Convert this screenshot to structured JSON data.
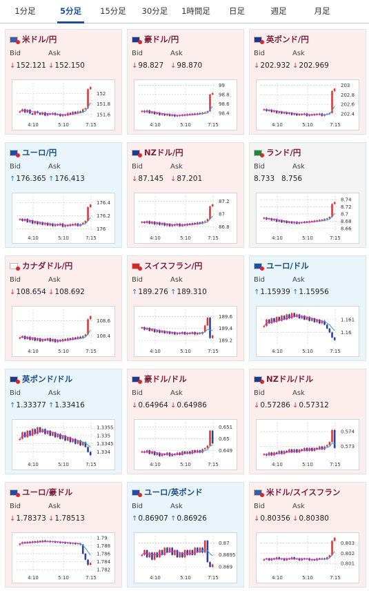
{
  "tabs": [
    {
      "label": "1分足",
      "active": false
    },
    {
      "label": "5分足",
      "active": true
    },
    {
      "label": "15分足",
      "active": false
    },
    {
      "label": "30分足",
      "active": false
    },
    {
      "label": "1時間足",
      "active": false
    },
    {
      "label": "日足",
      "active": false
    },
    {
      "label": "週足",
      "active": false
    },
    {
      "label": "月足",
      "active": false
    }
  ],
  "labels": {
    "bid": "Bid",
    "ask": "Ask"
  },
  "colors": {
    "tab_active": "#1b4f9b",
    "pair_pink_bg": "#fdeeee",
    "pair_blue_bg": "#eaf5fb",
    "down_arrow": "#d03030",
    "up_arrow": "#1679c9",
    "candle_up": "#d83a3a",
    "candle_down": "#2b3fa1",
    "moving_average": "#c640d2",
    "spike_line": "#2fa7e4"
  },
  "pairs": [
    {
      "name": "米ドル/円",
      "flag": "us-jp-flag-icon",
      "bg": "pink",
      "dir": "down",
      "bid": "152.121",
      "ask": "152.150",
      "chart_data": {
        "type": "candlestick",
        "x_ticks": [
          "4:10",
          "5:10",
          "7:15"
        ],
        "y_ticks": [
          "152",
          "151.8",
          "151.6"
        ],
        "ylim": [
          151.52,
          152.2
        ],
        "close": [
          151.66,
          151.7,
          151.64,
          151.69,
          151.62,
          151.6,
          151.66,
          151.63,
          151.6,
          151.64,
          151.58,
          151.62,
          151.6,
          151.63,
          151.59,
          151.61,
          151.57,
          151.6,
          151.58,
          151.63,
          151.6,
          151.65,
          151.62,
          151.66,
          151.64,
          151.7,
          151.72,
          152.08,
          152.12
        ]
      }
    },
    {
      "name": "豪ドル/円",
      "flag": "au-jp-flag-icon",
      "bg": "pink",
      "dir": "down",
      "bid": "98.827",
      "ask": "98.870",
      "chart_data": {
        "type": "candlestick",
        "x_ticks": [
          "4:10",
          "5:10",
          "7:15"
        ],
        "y_ticks": [
          "99",
          "98.8",
          "98.6",
          "98.4"
        ],
        "ylim": [
          98.28,
          99.05
        ],
        "close": [
          98.45,
          98.42,
          98.46,
          98.4,
          98.43,
          98.38,
          98.41,
          98.36,
          98.39,
          98.35,
          98.38,
          98.34,
          98.37,
          98.33,
          98.36,
          98.34,
          98.37,
          98.35,
          98.38,
          98.36,
          98.39,
          98.37,
          98.4,
          98.38,
          98.41,
          98.42,
          98.44,
          98.8,
          98.83
        ]
      }
    },
    {
      "name": "英ポンド/円",
      "flag": "gb-jp-flag-icon",
      "bg": "pink",
      "dir": "down",
      "bid": "202.932",
      "ask": "202.969",
      "chart_data": {
        "type": "candlestick",
        "x_ticks": [
          "4:10",
          "5:10",
          "7:15"
        ],
        "y_ticks": [
          "203",
          "202.8",
          "202.6",
          "202.4"
        ],
        "ylim": [
          202.3,
          203.05
        ],
        "close": [
          202.5,
          202.46,
          202.49,
          202.44,
          202.47,
          202.42,
          202.45,
          202.41,
          202.44,
          202.4,
          202.43,
          202.38,
          202.41,
          202.37,
          202.4,
          202.38,
          202.41,
          202.36,
          202.39,
          202.37,
          202.4,
          202.38,
          202.41,
          202.36,
          202.39,
          202.4,
          202.42,
          202.88,
          202.93
        ]
      }
    },
    {
      "name": "ユーロ/円",
      "flag": "eu-jp-flag-icon",
      "bg": "blue",
      "dir": "up",
      "bid": "176.365",
      "ask": "176.413",
      "chart_data": {
        "type": "candlestick",
        "x_ticks": [
          "4:10",
          "5:10",
          "7:15"
        ],
        "y_ticks": [
          "176.4",
          "176.2",
          "176"
        ],
        "ylim": [
          175.95,
          176.5
        ],
        "close": [
          176.15,
          176.12,
          176.15,
          176.1,
          176.13,
          176.08,
          176.11,
          176.07,
          176.1,
          176.06,
          176.09,
          176.05,
          176.08,
          176.04,
          176.07,
          176.05,
          176.08,
          176.03,
          176.06,
          176.04,
          176.07,
          176.05,
          176.08,
          176.04,
          176.07,
          176.09,
          176.12,
          176.33,
          176.37
        ]
      }
    },
    {
      "name": "NZドル/円",
      "flag": "nz-jp-flag-icon",
      "bg": "pink",
      "dir": "down",
      "bid": "87.145",
      "ask": "87.201",
      "chart_data": {
        "type": "candlestick",
        "x_ticks": [
          "4:10",
          "5:10",
          "7:15"
        ],
        "y_ticks": [
          "87.2",
          "87",
          "86.8"
        ],
        "ylim": [
          86.72,
          87.28
        ],
        "close": [
          86.88,
          86.86,
          86.89,
          86.85,
          86.88,
          86.84,
          86.87,
          86.83,
          86.86,
          86.82,
          86.85,
          86.81,
          86.84,
          86.82,
          86.85,
          86.81,
          86.84,
          86.82,
          86.85,
          86.83,
          86.86,
          86.84,
          86.87,
          86.85,
          86.88,
          86.89,
          86.92,
          87.12,
          87.15
        ]
      }
    },
    {
      "name": "ランド/円",
      "flag": "za-jp-flag-icon",
      "bg": "gray",
      "dir": "none",
      "bid": "8.733",
      "ask": "8.756",
      "chart_data": {
        "type": "candlestick",
        "x_ticks": [
          "4:10",
          "5:10",
          "7:15"
        ],
        "y_ticks": [
          "8.74",
          "8.72",
          "8.7",
          "8.68",
          "8.66"
        ],
        "ylim": [
          8.65,
          8.75
        ],
        "close": [
          8.69,
          8.685,
          8.688,
          8.682,
          8.686,
          8.679,
          8.683,
          8.677,
          8.681,
          8.675,
          8.679,
          8.674,
          8.678,
          8.673,
          8.677,
          8.675,
          8.679,
          8.676,
          8.68,
          8.678,
          8.682,
          8.68,
          8.684,
          8.682,
          8.686,
          8.688,
          8.692,
          8.728,
          8.733
        ]
      }
    },
    {
      "name": "カナダドル/円",
      "flag": "ca-jp-flag-icon",
      "bg": "pink",
      "dir": "down",
      "bid": "108.654",
      "ask": "108.692",
      "chart_data": {
        "type": "candlestick",
        "x_ticks": [
          "4:10",
          "5:10",
          "7:15"
        ],
        "y_ticks": [
          "108.6",
          "108.4"
        ],
        "ylim": [
          108.28,
          108.75
        ],
        "close": [
          108.38,
          108.4,
          108.36,
          108.39,
          108.35,
          108.38,
          108.34,
          108.37,
          108.33,
          108.36,
          108.34,
          108.37,
          108.33,
          108.36,
          108.32,
          108.35,
          108.33,
          108.36,
          108.34,
          108.37,
          108.35,
          108.38,
          108.36,
          108.39,
          108.37,
          108.4,
          108.42,
          108.62,
          108.66
        ]
      }
    },
    {
      "name": "スイスフラン/円",
      "flag": "ch-jp-flag-icon",
      "bg": "pink",
      "dir": "up",
      "bid": "189.276",
      "ask": "189.310",
      "chart_data": {
        "type": "candlestick",
        "x_ticks": [
          "4:10",
          "5:10",
          "7:15"
        ],
        "y_ticks": [
          "189.6",
          "189.4",
          "189.2"
        ],
        "ylim": [
          189.12,
          189.72
        ],
        "close": [
          189.42,
          189.38,
          189.41,
          189.36,
          189.39,
          189.34,
          189.37,
          189.33,
          189.36,
          189.32,
          189.35,
          189.31,
          189.34,
          189.3,
          189.33,
          189.31,
          189.34,
          189.3,
          189.33,
          189.31,
          189.34,
          189.3,
          189.33,
          189.31,
          189.34,
          189.45,
          189.58,
          189.24,
          189.28
        ]
      }
    },
    {
      "name": "ユーロ/ドル",
      "flag": "eu-us-flag-icon",
      "bg": "blue",
      "dir": "up",
      "bid": "1.15939",
      "ask": "1.15956",
      "chart_data": {
        "type": "candlestick",
        "x_ticks": [
          "4:10",
          "5:10",
          "7:15"
        ],
        "y_ticks": [
          "1.161",
          "1.16"
        ],
        "ylim": [
          1.159,
          1.1618
        ],
        "close": [
          1.1605,
          1.161,
          1.1607,
          1.1611,
          1.1608,
          1.1612,
          1.1609,
          1.1613,
          1.161,
          1.1614,
          1.1611,
          1.1615,
          1.1612,
          1.1614,
          1.1611,
          1.1613,
          1.161,
          1.1612,
          1.1609,
          1.1611,
          1.1608,
          1.161,
          1.1607,
          1.1609,
          1.1606,
          1.1603,
          1.16,
          1.1596,
          1.1594
        ]
      }
    },
    {
      "name": "英ポンド/ドル",
      "flag": "gb-us-flag-icon",
      "bg": "blue",
      "dir": "up",
      "bid": "1.33377",
      "ask": "1.33416",
      "chart_data": {
        "type": "candlestick",
        "x_ticks": [
          "4:10",
          "5:10",
          "7:15"
        ],
        "y_ticks": [
          "1.3355",
          "1.335",
          "1.3345",
          "1.334"
        ],
        "ylim": [
          1.3336,
          1.3358
        ],
        "close": [
          1.3348,
          1.3352,
          1.3349,
          1.3353,
          1.335,
          1.3354,
          1.3351,
          1.3355,
          1.3352,
          1.3354,
          1.3351,
          1.3353,
          1.335,
          1.3352,
          1.3349,
          1.3351,
          1.3348,
          1.335,
          1.3347,
          1.3349,
          1.3346,
          1.3348,
          1.3345,
          1.3347,
          1.3344,
          1.3346,
          1.3343,
          1.334,
          1.3338
        ]
      }
    },
    {
      "name": "豪ドル/ドル",
      "flag": "au-us-flag-icon",
      "bg": "pink",
      "dir": "down",
      "bid": "0.64964",
      "ask": "0.64986",
      "chart_data": {
        "type": "candlestick",
        "x_ticks": [
          "4:10",
          "5:10",
          "7:15"
        ],
        "y_ticks": [
          "0.651",
          "0.65",
          "0.649"
        ],
        "ylim": [
          0.6483,
          0.6514
        ],
        "close": [
          0.6489,
          0.6488,
          0.649,
          0.6487,
          0.6489,
          0.6486,
          0.6488,
          0.6485,
          0.6487,
          0.6486,
          0.6488,
          0.6485,
          0.6487,
          0.6486,
          0.6488,
          0.6486,
          0.6489,
          0.6487,
          0.6489,
          0.6487,
          0.649,
          0.6488,
          0.649,
          0.6488,
          0.6491,
          0.6492,
          0.6494,
          0.6507,
          0.6496
        ]
      }
    },
    {
      "name": "NZドル/ドル",
      "flag": "nz-us-flag-icon",
      "bg": "pink",
      "dir": "down",
      "bid": "0.57286",
      "ask": "0.57312",
      "chart_data": {
        "type": "candlestick",
        "x_ticks": [
          "4:10",
          "5:10",
          "7:15"
        ],
        "y_ticks": [
          "0.574",
          "0.573"
        ],
        "ylim": [
          0.5722,
          0.5746
        ],
        "close": [
          0.5725,
          0.5724,
          0.5726,
          0.5724,
          0.5726,
          0.5725,
          0.5727,
          0.5725,
          0.5727,
          0.5726,
          0.5728,
          0.5726,
          0.5728,
          0.5726,
          0.5728,
          0.5727,
          0.5729,
          0.5727,
          0.5729,
          0.5727,
          0.5729,
          0.5728,
          0.573,
          0.5728,
          0.573,
          0.5731,
          0.5733,
          0.5741,
          0.5729
        ]
      }
    },
    {
      "name": "ユーロ/豪ドル",
      "flag": "eu-au-flag-icon",
      "bg": "pink",
      "dir": "down",
      "bid": "1.78373",
      "ask": "1.78513",
      "chart_data": {
        "type": "candlestick",
        "x_ticks": [
          "4:10",
          "5:10",
          "7:15"
        ],
        "y_ticks": [
          "1.79",
          "1.788",
          "1.786",
          "1.784",
          "1.782"
        ],
        "ylim": [
          1.7815,
          1.7905
        ],
        "close": [
          1.7885,
          1.7889,
          1.7886,
          1.789,
          1.7887,
          1.7891,
          1.7888,
          1.7892,
          1.7889,
          1.7893,
          1.789,
          1.7892,
          1.7889,
          1.7891,
          1.7888,
          1.789,
          1.7887,
          1.7889,
          1.7886,
          1.7888,
          1.7885,
          1.7887,
          1.7884,
          1.7886,
          1.7883,
          1.786,
          1.7845,
          1.7832,
          1.7837
        ]
      }
    },
    {
      "name": "ユーロ/英ポンド",
      "flag": "eu-gb-flag-icon",
      "bg": "blue",
      "dir": "up",
      "bid": "0.86907",
      "ask": "0.86926",
      "chart_data": {
        "type": "candlestick",
        "x_ticks": [
          "4:10",
          "5:10",
          "7:15"
        ],
        "y_ticks": [
          "0.87",
          "0.8695",
          "0.869"
        ],
        "ylim": [
          0.8688,
          0.8703
        ],
        "close": [
          0.8695,
          0.8697,
          0.8694,
          0.8696,
          0.8693,
          0.8696,
          0.8694,
          0.8697,
          0.8695,
          0.8698,
          0.8696,
          0.8698,
          0.8695,
          0.8697,
          0.8694,
          0.8696,
          0.8694,
          0.8697,
          0.8695,
          0.8697,
          0.8695,
          0.8698,
          0.8696,
          0.8698,
          0.8696,
          0.8701,
          0.8692,
          0.869,
          0.8691
        ]
      }
    },
    {
      "name": "米ドル/スイスフラン",
      "flag": "us-ch-flag-icon",
      "bg": "pink",
      "dir": "down",
      "bid": "0.80356",
      "ask": "0.80380",
      "chart_data": {
        "type": "candlestick",
        "x_ticks": [
          "4:10",
          "5:10",
          "7:15"
        ],
        "y_ticks": [
          "0.803",
          "0.802",
          "0.801"
        ],
        "ylim": [
          0.8002,
          0.8037
        ],
        "close": [
          0.8014,
          0.8015,
          0.8013,
          0.8015,
          0.8014,
          0.8016,
          0.8014,
          0.8015,
          0.8013,
          0.8015,
          0.8014,
          0.8016,
          0.8014,
          0.8015,
          0.8013,
          0.8015,
          0.8014,
          0.8015,
          0.8013,
          0.8014,
          0.8013,
          0.8015,
          0.8014,
          0.8015,
          0.8014,
          0.8016,
          0.8018,
          0.8032,
          0.8035
        ]
      }
    }
  ]
}
